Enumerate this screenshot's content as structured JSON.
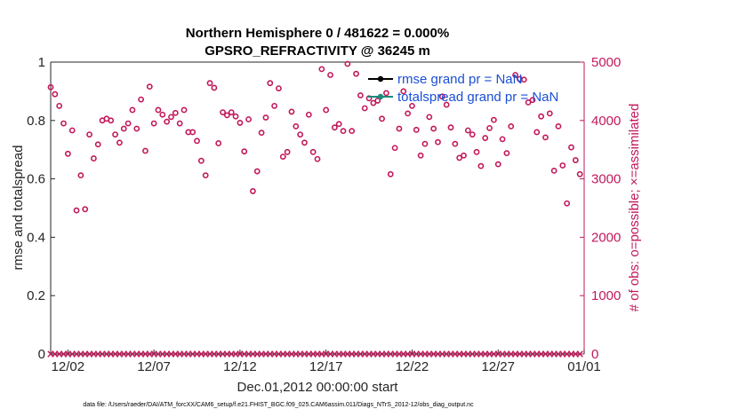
{
  "chart_data": {
    "type": "scatter",
    "title": [
      "Northern Hemisphere 0 / 481622 = 0.000%",
      "GPSRO_REFRACTIVITY @ 36245 m"
    ],
    "xlabel": "Dec.01,2012 00:00:00 start",
    "ylabel_left": "rmse and totalspread",
    "ylabel_right": "# of obs: o=possible; ×=assimilated",
    "x_tick_labels": [
      "12/02",
      "12/07",
      "12/12",
      "12/17",
      "12/22",
      "12/27",
      "01/01"
    ],
    "x_tick_days": [
      1,
      6,
      11,
      16,
      21,
      26,
      31
    ],
    "xlim_days": [
      0,
      31
    ],
    "ylim_left": [
      0,
      1
    ],
    "yticks_left": [
      "0",
      "0.2",
      "0.4",
      "0.6",
      "0.8",
      "1"
    ],
    "ylim_right": [
      0,
      5000
    ],
    "yticks_right": [
      "0",
      "1000",
      "2000",
      "3000",
      "4000",
      "5000"
    ],
    "grid": false,
    "legend_placement": "top-right",
    "legend": [
      "rmse grand pr = NaN",
      "totalspread grand pr = NaN"
    ],
    "colors": {
      "obs": "#c2185b",
      "rmse": "#000000",
      "spread": "#1a8a7a",
      "legend_text": "#1a4fd6"
    },
    "series": [
      {
        "name": "possible",
        "marker": "circle",
        "x_days": [
          0.0,
          0.25,
          0.5,
          0.75,
          1.0,
          1.25,
          1.5,
          1.75,
          2.0,
          2.25,
          2.5,
          2.75,
          3.0,
          3.25,
          3.5,
          3.75,
          4.0,
          4.25,
          4.5,
          4.75,
          5.0,
          5.25,
          5.5,
          5.75,
          6.0,
          6.25,
          6.5,
          6.75,
          7.0,
          7.25,
          7.5,
          7.75,
          8.0,
          8.25,
          8.5,
          8.75,
          9.0,
          9.25,
          9.5,
          9.75,
          10.0,
          10.25,
          10.5,
          10.75,
          11.0,
          11.25,
          11.5,
          11.75,
          12.0,
          12.25,
          12.5,
          12.75,
          13.0,
          13.25,
          13.5,
          13.75,
          14.0,
          14.25,
          14.5,
          14.75,
          15.0,
          15.25,
          15.5,
          15.75,
          16.0,
          16.25,
          16.5,
          16.75,
          17.0,
          17.25,
          17.5,
          17.75,
          18.0,
          18.25,
          18.5,
          18.75,
          19.0,
          19.25,
          19.5,
          19.75,
          20.0,
          20.25,
          20.5,
          20.75,
          21.0,
          21.25,
          21.5,
          21.75,
          22.0,
          22.25,
          22.5,
          22.75,
          23.0,
          23.25,
          23.5,
          23.75,
          24.0,
          24.25,
          24.5,
          24.75,
          25.0,
          25.25,
          25.5,
          25.75,
          26.0,
          26.25,
          26.5,
          26.75,
          27.0,
          27.25,
          27.5,
          27.75,
          28.0,
          28.25,
          28.5,
          28.75,
          29.0,
          29.25,
          29.5,
          29.75,
          30.0,
          30.25,
          30.5,
          30.75
        ],
        "values": [
          4570,
          4450,
          4250,
          3950,
          3430,
          3830,
          2460,
          3060,
          2480,
          3760,
          3350,
          3590,
          4000,
          4030,
          4000,
          3760,
          3620,
          3860,
          3950,
          4180,
          3860,
          4360,
          3480,
          4580,
          3950,
          4180,
          4100,
          3980,
          4060,
          4130,
          3950,
          4180,
          3800,
          3800,
          3650,
          3310,
          3060,
          4640,
          4560,
          3610,
          4140,
          4090,
          4140,
          4070,
          3960,
          3470,
          4020,
          2790,
          3130,
          3790,
          4050,
          4640,
          4250,
          4550,
          3380,
          3460,
          4150,
          3900,
          3760,
          3620,
          4100,
          3460,
          3340,
          4880,
          4180,
          4780,
          3880,
          3940,
          3820,
          4970,
          3820,
          4800,
          4430,
          4210,
          4380,
          4300,
          4340,
          4030,
          4470,
          3080,
          3530,
          3860,
          4500,
          4120,
          4250,
          3840,
          3400,
          3600,
          4060,
          3860,
          3630,
          4410,
          4270,
          3880,
          3600,
          3360,
          3400,
          3830,
          3760,
          3460,
          3220,
          3700,
          3870,
          4010,
          3250,
          3680,
          3440,
          3900,
          4780,
          4710,
          4700,
          4310,
          4350,
          3800,
          4070,
          3710,
          4120,
          3140,
          3900,
          3230,
          2580,
          3540,
          3320,
          3080
        ]
      },
      {
        "name": "assimilated",
        "marker": "x",
        "x_days": [
          0.0,
          0.25,
          0.5,
          0.75,
          1.0,
          1.25,
          1.5,
          1.75,
          2.0,
          2.25,
          2.5,
          2.75,
          3.0,
          3.25,
          3.5,
          3.75,
          4.0,
          4.25,
          4.5,
          4.75,
          5.0,
          5.25,
          5.5,
          5.75,
          6.0,
          6.25,
          6.5,
          6.75,
          7.0,
          7.25,
          7.5,
          7.75,
          8.0,
          8.25,
          8.5,
          8.75,
          9.0,
          9.25,
          9.5,
          9.75,
          10.0,
          10.25,
          10.5,
          10.75,
          11.0,
          11.25,
          11.5,
          11.75,
          12.0,
          12.25,
          12.5,
          12.75,
          13.0,
          13.25,
          13.5,
          13.75,
          14.0,
          14.25,
          14.5,
          14.75,
          15.0,
          15.25,
          15.5,
          15.75,
          16.0,
          16.25,
          16.5,
          16.75,
          17.0,
          17.25,
          17.5,
          17.75,
          18.0,
          18.25,
          18.5,
          18.75,
          19.0,
          19.25,
          19.5,
          19.75,
          20.0,
          20.25,
          20.5,
          20.75,
          21.0,
          21.25,
          21.5,
          21.75,
          22.0,
          22.25,
          22.5,
          22.75,
          23.0,
          23.25,
          23.5,
          23.75,
          24.0,
          24.25,
          24.5,
          24.75,
          25.0,
          25.25,
          25.5,
          25.75,
          26.0,
          26.25,
          26.5,
          26.75,
          27.0,
          27.25,
          27.5,
          27.75,
          28.0,
          28.25,
          28.5,
          28.75,
          29.0,
          29.25,
          29.5,
          29.75,
          30.0,
          30.25,
          30.5,
          30.75
        ],
        "values": [
          0,
          0,
          0,
          0,
          0,
          0,
          0,
          0,
          0,
          0,
          0,
          0,
          0,
          0,
          0,
          0,
          0,
          0,
          0,
          0,
          0,
          0,
          0,
          0,
          0,
          0,
          0,
          0,
          0,
          0,
          0,
          0,
          0,
          0,
          0,
          0,
          0,
          0,
          0,
          0,
          0,
          0,
          0,
          0,
          0,
          0,
          0,
          0,
          0,
          0,
          0,
          0,
          0,
          0,
          0,
          0,
          0,
          0,
          0,
          0,
          0,
          0,
          0,
          0,
          0,
          0,
          0,
          0,
          0,
          0,
          0,
          0,
          0,
          0,
          0,
          0,
          0,
          0,
          0,
          0,
          0,
          0,
          0,
          0,
          0,
          0,
          0,
          0,
          0,
          0,
          0,
          0,
          0,
          0,
          0,
          0,
          0,
          0,
          0,
          0,
          0,
          0,
          0,
          0,
          0,
          0,
          0,
          0,
          0,
          0,
          0,
          0,
          0,
          0,
          0,
          0,
          0,
          0,
          0,
          0,
          0,
          0,
          0,
          0
        ]
      }
    ]
  },
  "footer": "data file: /Users/raeder/DAI/ATM_forcXX/CAM6_setup/f.e21.FHIST_BGC.f09_025.CAM6assim.011/Diags_NTrS_2012-12/obs_diag_output.nc"
}
